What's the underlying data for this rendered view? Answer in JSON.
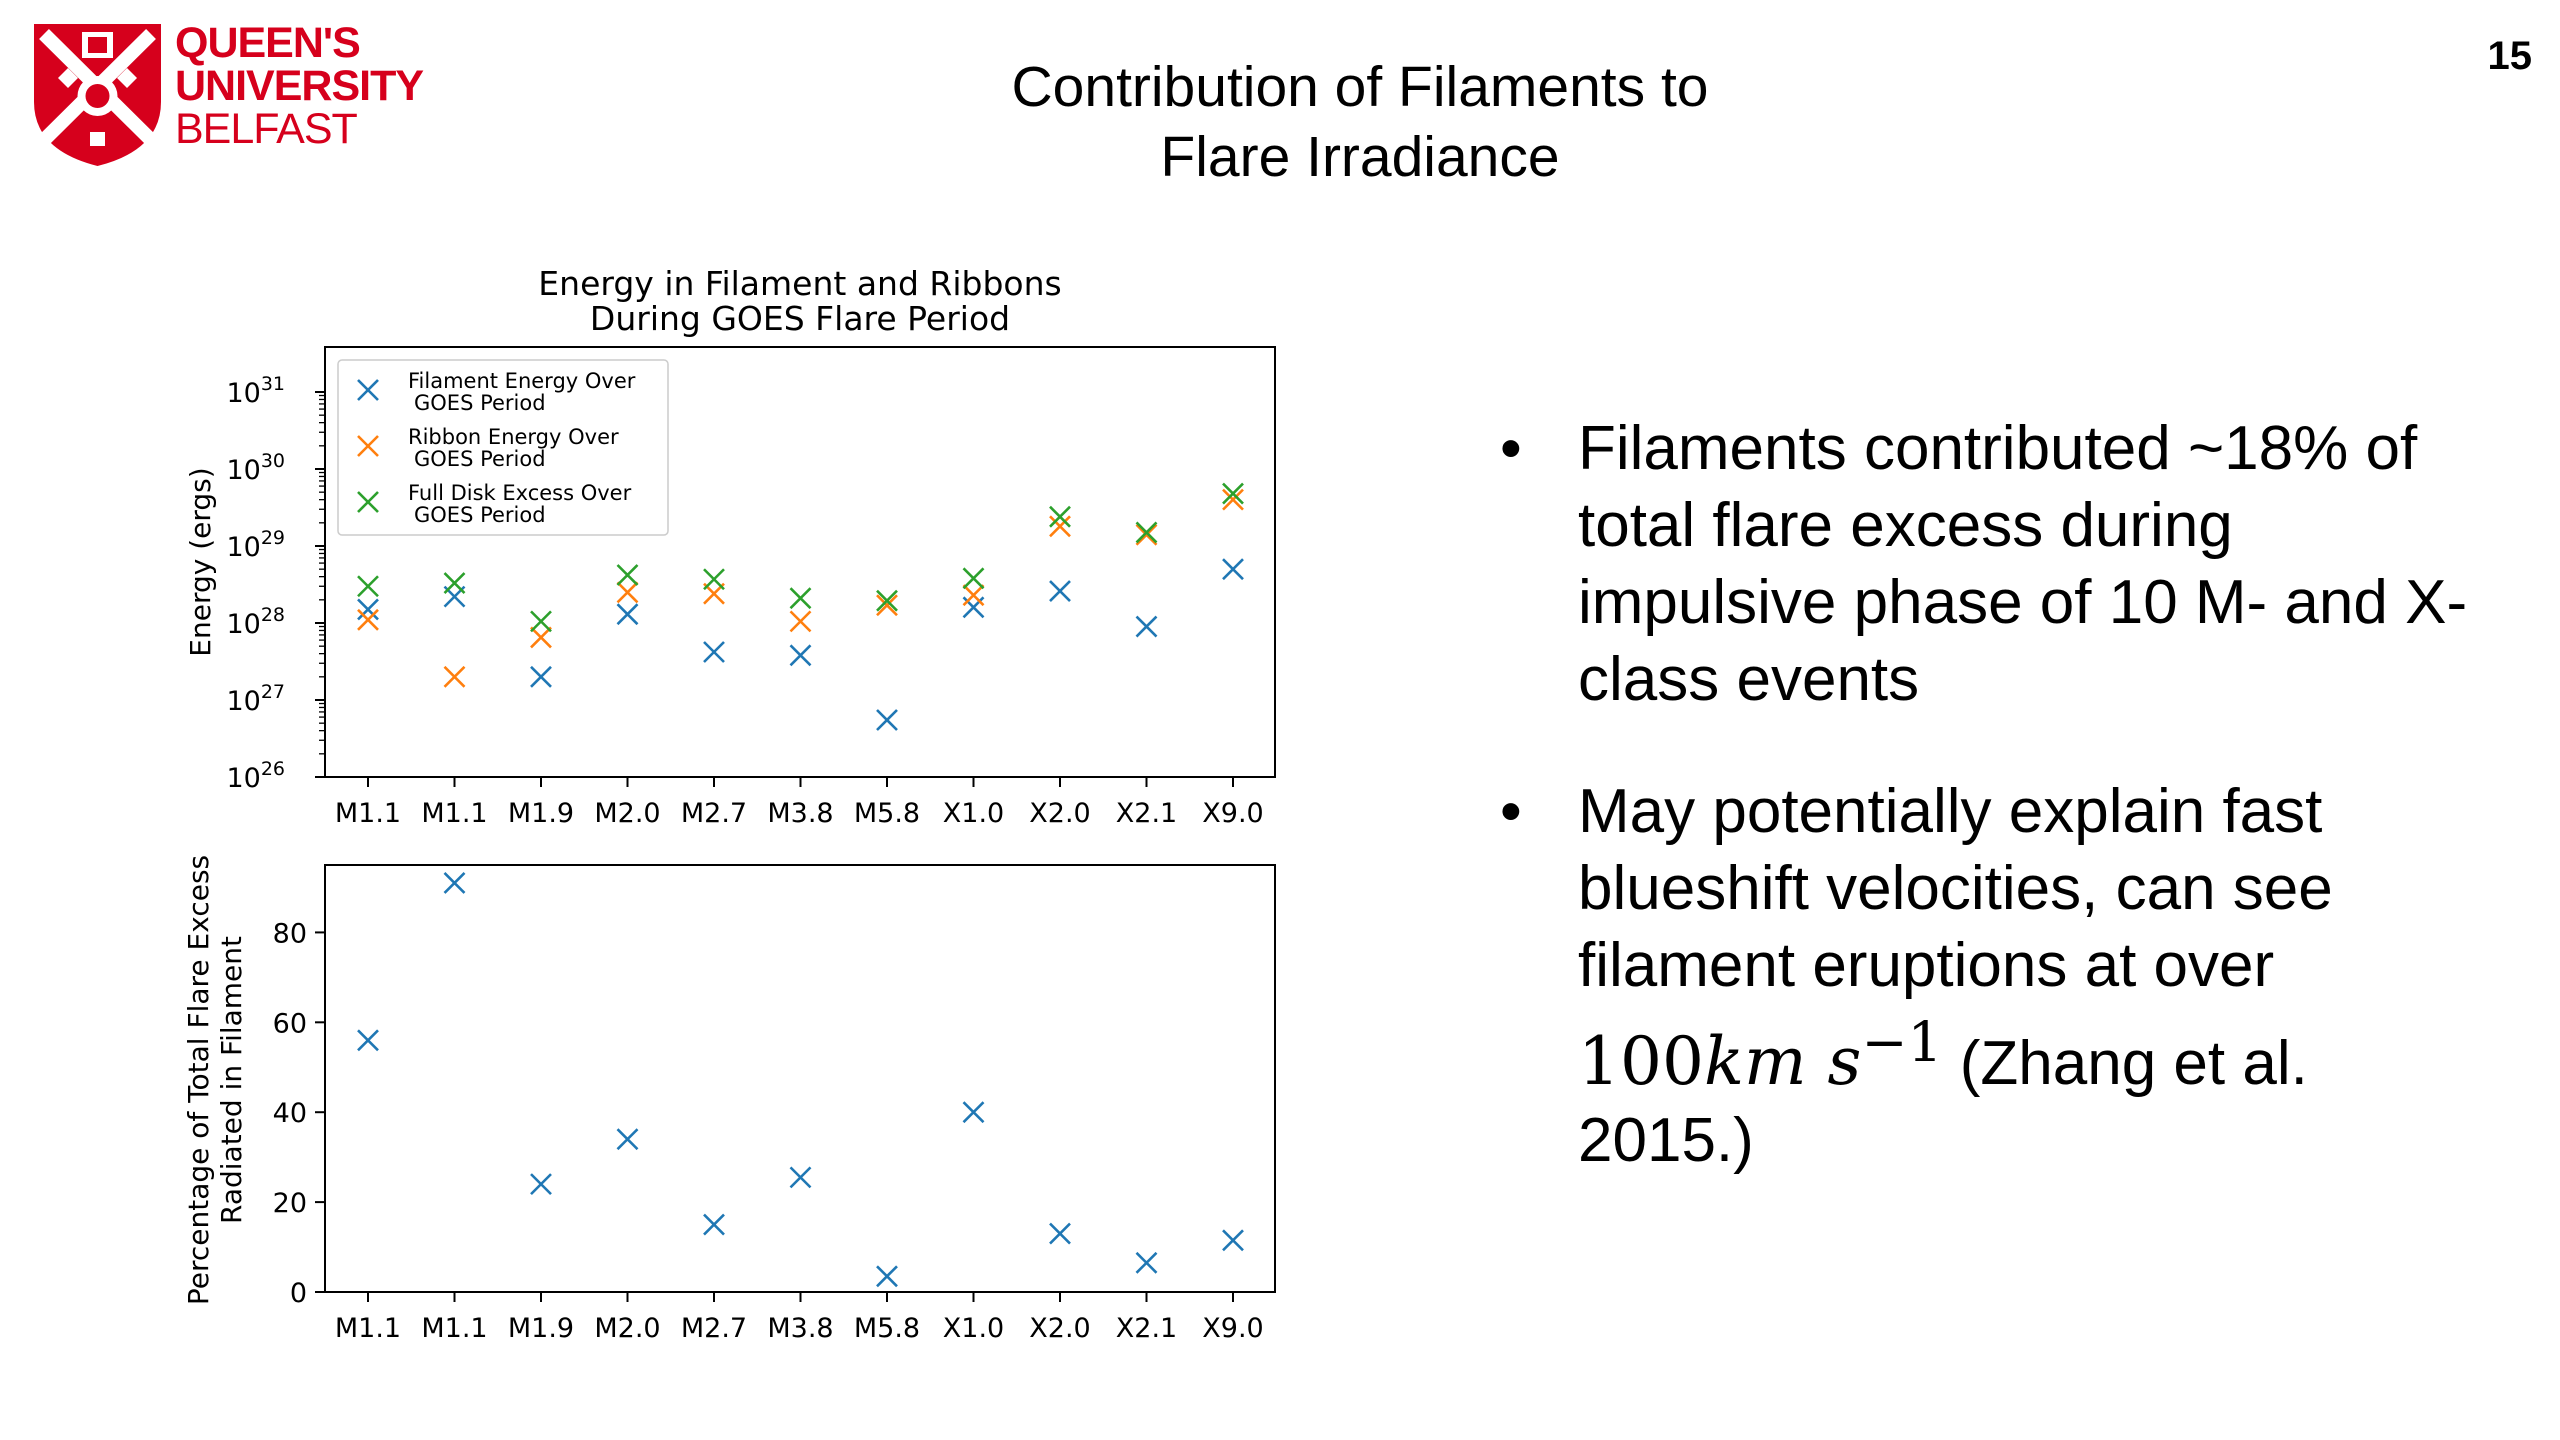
{
  "slide": {
    "title_line1": "Contribution of Filaments to",
    "title_line2": "Flare Irradiance",
    "number": "15"
  },
  "logo": {
    "line1": "QUEEN'S",
    "line2": "UNIVERSITY",
    "line3": "BELFAST",
    "color": "#d6001c"
  },
  "bullets": {
    "b1": "Filaments contributed ~18% of total flare excess during impulsive phase of 10 M- and X-class events",
    "b2_pre": "May potentially explain fast blueshift velocities, can see filament eruptions at over",
    "b2_num": "100",
    "b2_km": "km",
    "b2_s": "s",
    "b2_exp": "−1",
    "b2_post": "(Zhang et al. 2015.)"
  },
  "chart_data": [
    {
      "type": "scatter",
      "title": "Energy in Filament and Ribbons\nDuring GOES Flare Period",
      "ylabel": "Energy (ergs)",
      "yscale": "log",
      "ylim": [
        1e+26,
        1e+31
      ],
      "yticks": [
        26,
        27,
        28,
        29,
        30,
        31
      ],
      "categories": [
        "M1.1",
        "M1.1",
        "M1.9",
        "M2.0",
        "M2.7",
        "M3.8",
        "M5.8",
        "X1.0",
        "X2.0",
        "X2.1",
        "X9.0"
      ],
      "legend_position": "top-left",
      "series": [
        {
          "name": "Filament Energy Over\nGOES Period",
          "color": "#1f77b4",
          "values": [
            1.5e+28,
            2.2e+28,
            2e+27,
            1.3e+28,
            4.2e+27,
            3.8e+27,
            5.5e+26,
            1.6e+28,
            2.6e+28,
            9e+27,
            5e+28
          ]
        },
        {
          "name": "Ribbon Energy Over\nGOES Period",
          "color": "#ff7f0e",
          "values": [
            1.1e+28,
            2e+27,
            6.5e+27,
            2.5e+28,
            2.4e+28,
            1.05e+28,
            1.7e+28,
            2.3e+28,
            1.8e+29,
            1.4e+29,
            4e+29
          ]
        },
        {
          "name": "Full Disk Excess Over\nGOES Period",
          "color": "#2ca02c",
          "values": [
            3e+28,
            3.3e+28,
            1.05e+28,
            4.2e+28,
            3.7e+28,
            2.1e+28,
            1.95e+28,
            3.8e+28,
            2.4e+29,
            1.5e+29,
            4.8e+29
          ]
        }
      ]
    },
    {
      "type": "scatter",
      "ylabel": "Percentage of Total Flare Excess\nRadiated in Filament",
      "ylim": [
        0,
        95
      ],
      "yticks": [
        0,
        20,
        40,
        60,
        80
      ],
      "categories": [
        "M1.1",
        "M1.1",
        "M1.9",
        "M2.0",
        "M2.7",
        "M3.8",
        "M5.8",
        "X1.0",
        "X2.0",
        "X2.1",
        "X9.0"
      ],
      "series": [
        {
          "color": "#1f77b4",
          "values": [
            56,
            91,
            24,
            34,
            15,
            25.5,
            3.5,
            40,
            13,
            6.5,
            11.5
          ]
        }
      ]
    }
  ]
}
